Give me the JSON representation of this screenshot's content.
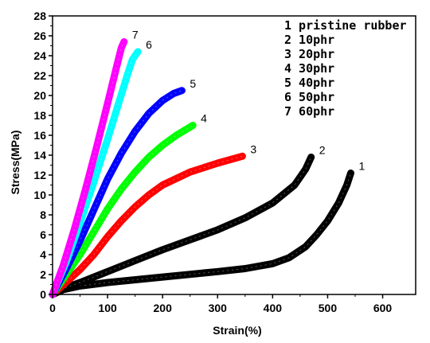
{
  "chart_data": {
    "type": "line",
    "title": "",
    "xlabel": "Strain(%)",
    "ylabel": "Stress(MPa)",
    "xlim": [
      0,
      660
    ],
    "ylim": [
      0,
      28
    ],
    "xticks": [
      0,
      100,
      200,
      300,
      400,
      500,
      600
    ],
    "yticks": [
      0,
      2,
      4,
      6,
      8,
      10,
      12,
      14,
      16,
      18,
      20,
      22,
      24,
      26,
      28
    ],
    "grid": false,
    "legend": "top-right",
    "series": [
      {
        "name": "1 pristine rubber",
        "end_label": "1",
        "color": "#000000",
        "points": [
          [
            0,
            0
          ],
          [
            20,
            0.5
          ],
          [
            50,
            0.85
          ],
          [
            100,
            1.2
          ],
          [
            200,
            1.75
          ],
          [
            300,
            2.3
          ],
          [
            350,
            2.6
          ],
          [
            400,
            3.1
          ],
          [
            430,
            3.7
          ],
          [
            460,
            4.8
          ],
          [
            480,
            6.0
          ],
          [
            500,
            7.4
          ],
          [
            520,
            9.2
          ],
          [
            535,
            11.0
          ],
          [
            542,
            12.2
          ]
        ]
      },
      {
        "name": "2 10phr",
        "end_label": "2",
        "color": "#000000",
        "points": [
          [
            0,
            0
          ],
          [
            20,
            0.6
          ],
          [
            50,
            1.2
          ],
          [
            100,
            2.3
          ],
          [
            150,
            3.4
          ],
          [
            200,
            4.5
          ],
          [
            250,
            5.5
          ],
          [
            300,
            6.5
          ],
          [
            350,
            7.7
          ],
          [
            400,
            9.2
          ],
          [
            440,
            11.0
          ],
          [
            460,
            12.6
          ],
          [
            470,
            13.8
          ]
        ]
      },
      {
        "name": "3 20phr",
        "end_label": "3",
        "color": "#ff0000",
        "points": [
          [
            0,
            0
          ],
          [
            20,
            1.0
          ],
          [
            50,
            2.5
          ],
          [
            75,
            4.0
          ],
          [
            100,
            5.8
          ],
          [
            125,
            7.4
          ],
          [
            150,
            8.8
          ],
          [
            175,
            10.0
          ],
          [
            200,
            11.0
          ],
          [
            250,
            12.3
          ],
          [
            300,
            13.2
          ],
          [
            345,
            13.9
          ]
        ]
      },
      {
        "name": "4 30phr",
        "end_label": "4",
        "color": "#00ff00",
        "points": [
          [
            0,
            0
          ],
          [
            25,
            2.0
          ],
          [
            50,
            4.0
          ],
          [
            75,
            6.3
          ],
          [
            100,
            8.6
          ],
          [
            125,
            10.6
          ],
          [
            150,
            12.3
          ],
          [
            175,
            13.8
          ],
          [
            200,
            15.0
          ],
          [
            225,
            16.0
          ],
          [
            255,
            17.0
          ]
        ]
      },
      {
        "name": "5 40phr",
        "end_label": "5",
        "color": "#0000ff",
        "points": [
          [
            0,
            0
          ],
          [
            25,
            2.6
          ],
          [
            50,
            5.4
          ],
          [
            75,
            8.5
          ],
          [
            100,
            11.6
          ],
          [
            125,
            14.2
          ],
          [
            150,
            16.4
          ],
          [
            175,
            18.2
          ],
          [
            200,
            19.5
          ],
          [
            220,
            20.2
          ],
          [
            235,
            20.5
          ]
        ]
      },
      {
        "name": "6 50phr",
        "end_label": "6",
        "color": "#00ffff",
        "points": [
          [
            0,
            0
          ],
          [
            25,
            3.3
          ],
          [
            50,
            7.2
          ],
          [
            75,
            11.3
          ],
          [
            100,
            15.6
          ],
          [
            120,
            19.2
          ],
          [
            135,
            21.9
          ],
          [
            145,
            23.6
          ],
          [
            155,
            24.4
          ]
        ]
      },
      {
        "name": "7 60phr",
        "end_label": "7",
        "color": "#ff00ff",
        "points": [
          [
            0,
            0
          ],
          [
            20,
            3.0
          ],
          [
            40,
            6.6
          ],
          [
            60,
            10.6
          ],
          [
            80,
            14.8
          ],
          [
            100,
            19.2
          ],
          [
            115,
            22.6
          ],
          [
            125,
            24.8
          ],
          [
            130,
            25.4
          ]
        ]
      }
    ]
  }
}
